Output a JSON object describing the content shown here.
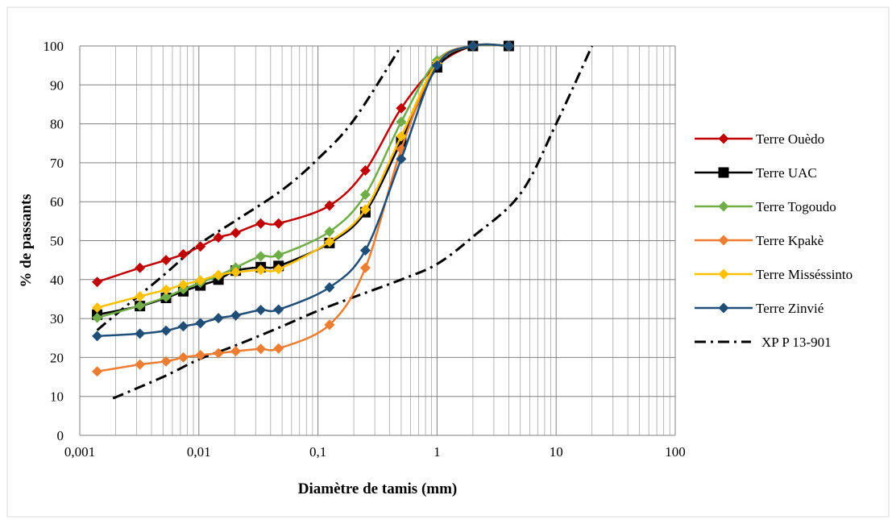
{
  "chart_data": {
    "type": "line",
    "xlabel": "Diamètre de tamis (mm)",
    "ylabel": "% de passants",
    "x_scale": "log",
    "xlim": [
      0.001,
      100
    ],
    "ylim": [
      0,
      100
    ],
    "x_ticks": [
      "0,001",
      "0,01",
      "0,1",
      "1",
      "10",
      "100"
    ],
    "y_ticks": [
      "0",
      "10",
      "20",
      "30",
      "40",
      "50",
      "60",
      "70",
      "80",
      "90",
      "100"
    ],
    "grid": true,
    "legend_position": "right",
    "series": [
      {
        "name": "Terre Ouèdo",
        "color": "#c00000",
        "marker": "diamond",
        "x": [
          0.0014,
          0.0032,
          0.0053,
          0.0074,
          0.0103,
          0.0146,
          0.0204,
          0.0331,
          0.0467,
          0.125,
          0.25,
          0.5,
          1,
          2,
          4
        ],
        "y": [
          39.4,
          43,
          45,
          46.5,
          48.5,
          50.8,
          52,
          54.4,
          54.4,
          59,
          68,
          84,
          95,
          100,
          100
        ]
      },
      {
        "name": "Terre UAC",
        "color": "#000000",
        "marker": "square",
        "x": [
          0.0014,
          0.0032,
          0.0053,
          0.0074,
          0.0103,
          0.0146,
          0.0204,
          0.0331,
          0.0467,
          0.125,
          0.25,
          0.5,
          1,
          2,
          4
        ],
        "y": [
          31,
          33.2,
          35.3,
          37,
          38.5,
          40,
          42.3,
          43.2,
          43.5,
          49.4,
          57.3,
          75.5,
          94.5,
          100,
          100
        ]
      },
      {
        "name": "Terre Togoudo",
        "color": "#70ad47",
        "marker": "diamond",
        "x": [
          0.0014,
          0.0032,
          0.0053,
          0.0074,
          0.0103,
          0.0146,
          0.0204,
          0.0331,
          0.0467,
          0.125,
          0.25,
          0.5,
          1,
          2,
          4
        ],
        "y": [
          30.2,
          33.3,
          35.5,
          37.5,
          39.2,
          41,
          43.1,
          46,
          46.3,
          52.3,
          61.8,
          80.5,
          96.3,
          100,
          100
        ]
      },
      {
        "name": "Terre Kpakè",
        "color": "#ed7d31",
        "marker": "diamond",
        "x": [
          0.0014,
          0.0032,
          0.0053,
          0.0074,
          0.0103,
          0.0146,
          0.0204,
          0.0331,
          0.0467,
          0.125,
          0.25,
          0.5,
          1,
          2,
          4
        ],
        "y": [
          16.4,
          18.2,
          19,
          20,
          20.6,
          21.1,
          21.6,
          22.2,
          22.3,
          28.4,
          43,
          73.5,
          95.5,
          100,
          100
        ]
      },
      {
        "name": "Terre Misséssinto",
        "color": "#ffc000",
        "marker": "diamond",
        "x": [
          0.0014,
          0.0032,
          0.0053,
          0.0074,
          0.0103,
          0.0146,
          0.0204,
          0.0331,
          0.0467,
          0.125,
          0.25,
          0.5,
          1,
          2,
          4
        ],
        "y": [
          32.8,
          35.7,
          37.4,
          38.7,
          39.8,
          41.2,
          41.9,
          42.5,
          42.7,
          49.7,
          58,
          76.8,
          95.5,
          100,
          100
        ]
      },
      {
        "name": "Terre Zinvié",
        "color": "#1f4e79",
        "marker": "diamond",
        "x": [
          0.0014,
          0.0032,
          0.0053,
          0.0074,
          0.0103,
          0.0146,
          0.0204,
          0.0331,
          0.0467,
          0.125,
          0.25,
          0.5,
          1,
          2,
          4
        ],
        "y": [
          25.5,
          26.1,
          26.9,
          28,
          28.8,
          30.1,
          30.8,
          32.2,
          32.3,
          38,
          47.5,
          71,
          95,
          100,
          100
        ]
      }
    ],
    "reference_curves": {
      "name": "XP P 13-901",
      "color": "#000000",
      "style": "dash-dot",
      "upper": {
        "x": [
          0.0014,
          0.002,
          0.005,
          0.01,
          0.02,
          0.05,
          0.1,
          0.2,
          0.5
        ],
        "y": [
          27,
          31,
          41,
          49,
          55,
          63,
          71,
          81,
          100
        ]
      },
      "lower": {
        "x": [
          0.0019,
          0.005,
          0.01,
          0.02,
          0.05,
          0.1,
          0.2,
          0.5,
          1,
          2,
          5,
          10,
          20
        ],
        "y": [
          9.5,
          15,
          19.5,
          23,
          28,
          32,
          35.5,
          40,
          44,
          51,
          62,
          80,
          100
        ]
      }
    }
  }
}
